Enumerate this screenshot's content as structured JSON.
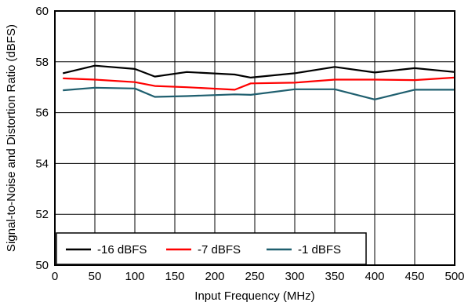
{
  "chart_data": {
    "type": "line",
    "title": "",
    "xlabel": "Input Frequency (MHz)",
    "ylabel": "Signal-to-Noise and Distortion Ratio (dBFS)",
    "xlim": [
      0,
      500
    ],
    "ylim": [
      50,
      60
    ],
    "xticks": [
      0,
      50,
      100,
      150,
      200,
      250,
      300,
      350,
      400,
      450,
      500
    ],
    "yticks": [
      50,
      52,
      54,
      56,
      58,
      60
    ],
    "grid": true,
    "legend": "bottom-left, single row",
    "x": [
      10,
      50,
      100,
      125,
      165,
      225,
      245,
      300,
      350,
      400,
      450,
      500
    ],
    "series": [
      {
        "name": "-16 dBFS",
        "color": "#000000",
        "values": [
          57.55,
          57.85,
          57.72,
          57.42,
          57.6,
          57.5,
          57.38,
          57.55,
          57.8,
          57.58,
          57.75,
          57.6
        ]
      },
      {
        "name": "-7 dBFS",
        "color": "#ff0000",
        "values": [
          57.35,
          57.3,
          57.2,
          57.05,
          57.0,
          56.9,
          57.15,
          57.18,
          57.3,
          57.3,
          57.28,
          57.38
        ]
      },
      {
        "name": "-1 dBFS",
        "color": "#1f5f6f",
        "values": [
          56.88,
          56.98,
          56.95,
          56.62,
          56.65,
          56.72,
          56.7,
          56.92,
          56.92,
          56.52,
          56.9,
          56.9
        ]
      }
    ]
  }
}
